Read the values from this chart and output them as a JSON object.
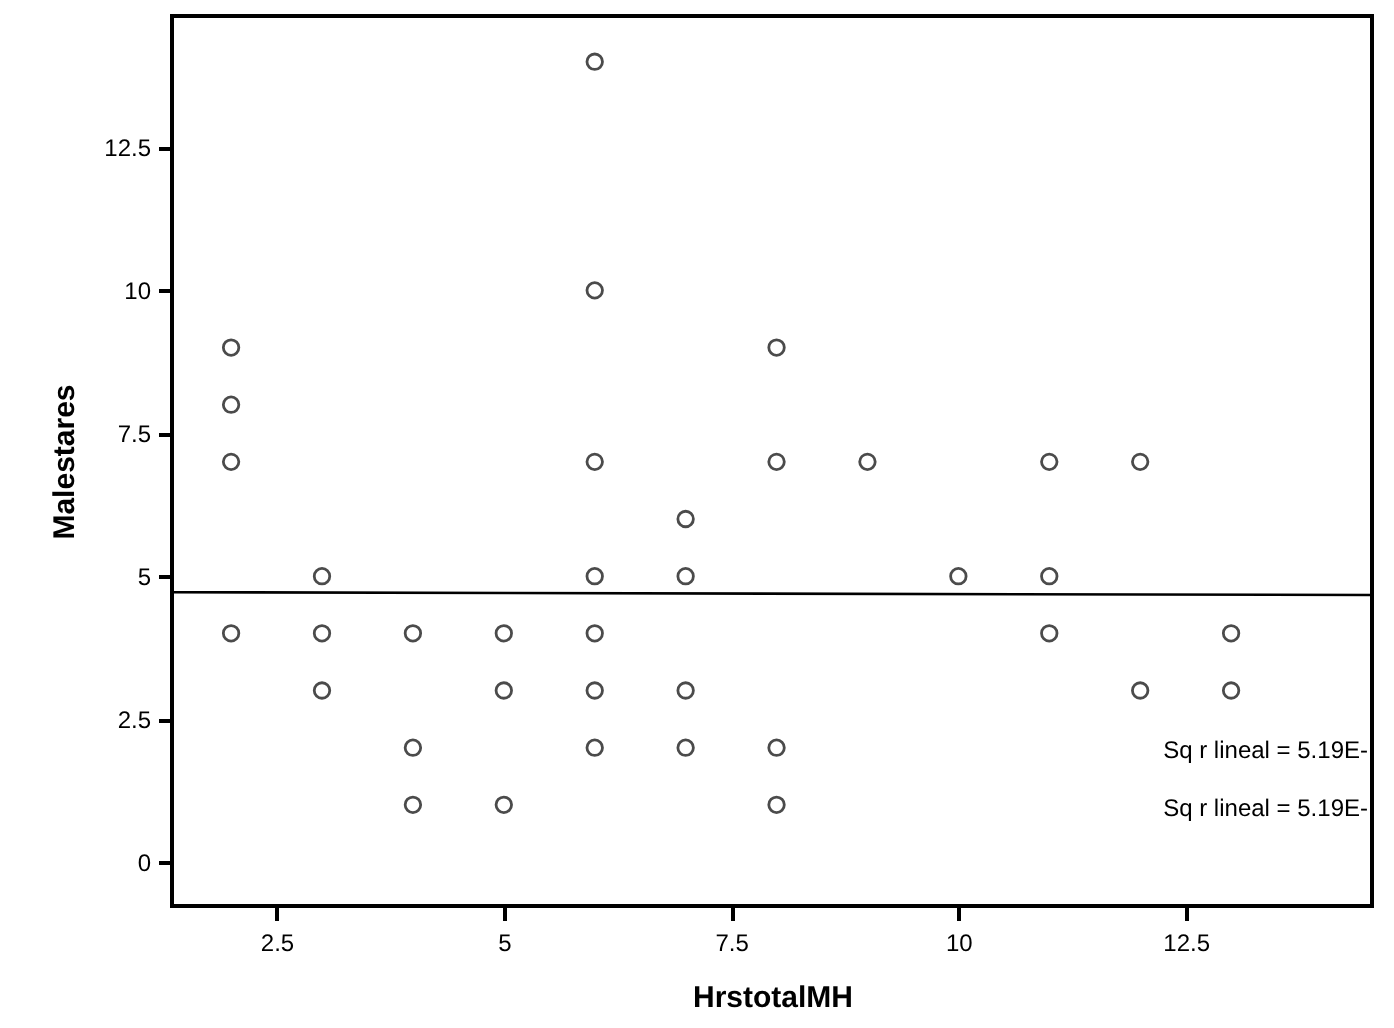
{
  "chart_data": {
    "type": "scatter",
    "xlabel": "HrstotalMH",
    "ylabel": "Malestares",
    "xlim": [
      1.35,
      14.55
    ],
    "ylim": [
      -0.77,
      14.8
    ],
    "xticks": [
      2.5,
      5,
      7.5,
      10,
      12.5
    ],
    "yticks": [
      0,
      2.5,
      5,
      7.5,
      10,
      12.5
    ],
    "marker": "circle",
    "annotations": [
      "Sq r lineal = 5.19E-",
      "Sq r lineal = 5.19E-"
    ],
    "series": [
      {
        "color": "#000000",
        "x": [
          2,
          2,
          2,
          2,
          3,
          3,
          3,
          4,
          4,
          4,
          5,
          5,
          5,
          6,
          6,
          6,
          6,
          6,
          6,
          6,
          7,
          7,
          7,
          7,
          8,
          8,
          8,
          8,
          9,
          10,
          11,
          11,
          11,
          12,
          12,
          13,
          13
        ],
        "values": [
          9,
          8,
          7,
          4,
          5,
          4,
          3,
          4,
          2,
          1,
          4,
          3,
          1,
          14,
          10,
          7,
          5,
          4,
          3,
          2,
          6,
          5,
          3,
          2,
          9,
          7,
          2,
          1,
          7,
          5,
          7,
          5,
          4,
          7,
          3,
          4,
          3
        ]
      },
      {
        "type": "line",
        "color": "#000000",
        "line_style": "solid",
        "marker": "none",
        "x": [
          1.35,
          14.55
        ],
        "values": [
          4.72,
          4.67
        ]
      }
    ]
  }
}
